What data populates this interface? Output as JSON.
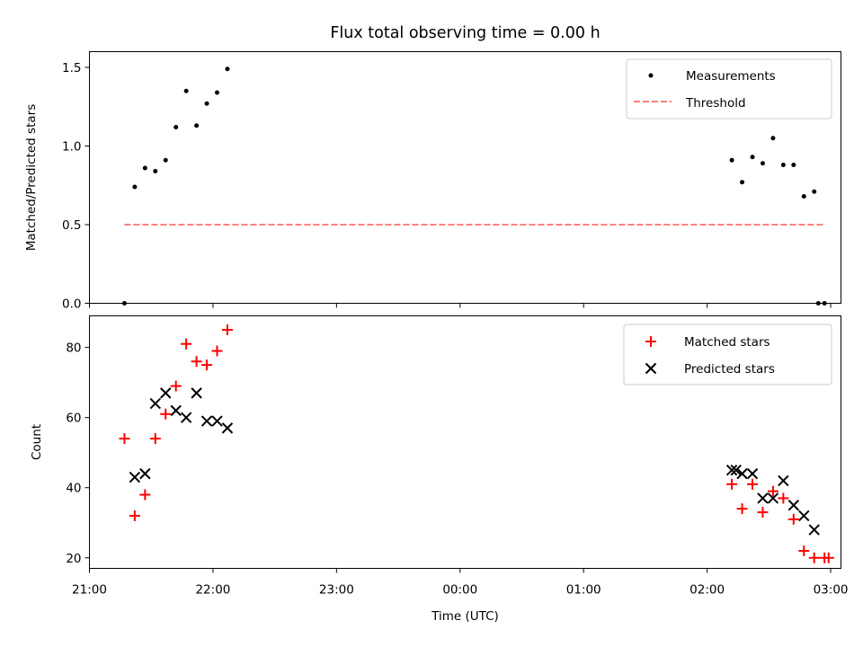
{
  "chart_data": [
    {
      "type": "scatter",
      "title": "Flux total observing time = 0.00 h",
      "xlabel": "",
      "ylabel": "Matched/Predicted stars",
      "xlim": [
        "21:00",
        "03:05"
      ],
      "ylim": [
        0,
        1.6
      ],
      "yticks": [
        "0.0",
        "0.5",
        "1.0",
        "1.5"
      ],
      "legend_position": "top-right",
      "series": [
        {
          "name": "Measurements",
          "marker": "dot",
          "color": "#000000",
          "x": [
            "21:17",
            "21:22",
            "21:27",
            "21:32",
            "21:37",
            "21:42",
            "21:47",
            "21:52",
            "21:57",
            "22:02",
            "22:07",
            "02:12",
            "02:17",
            "02:22",
            "02:27",
            "02:32",
            "02:37",
            "02:42",
            "02:47",
            "02:52",
            "02:57"
          ],
          "y": [
            0.0,
            0.74,
            0.86,
            0.84,
            0.91,
            1.12,
            1.35,
            1.13,
            1.27,
            1.34,
            1.49,
            0.91,
            0.77,
            0.93,
            0.89,
            1.05,
            0.88,
            0.88,
            0.68,
            0.71,
            0.0
          ]
        },
        {
          "name": "Threshold",
          "marker": "dashed-line",
          "color": "#ff7f7f",
          "x": [
            "21:17",
            "02:57"
          ],
          "y": [
            0.5,
            0.5
          ]
        }
      ],
      "extra_points": [
        {
          "x": "02:54",
          "y": 0.0
        }
      ]
    },
    {
      "type": "scatter",
      "title": "",
      "xlabel": "Time (UTC)",
      "ylabel": "Count",
      "xlim": [
        "21:00",
        "03:05"
      ],
      "ylim": [
        17,
        89
      ],
      "yticks": [
        "20",
        "40",
        "60",
        "80"
      ],
      "xticks": [
        "21:00",
        "22:00",
        "23:00",
        "00:00",
        "01:00",
        "02:00",
        "03:00"
      ],
      "legend_position": "top-right",
      "series": [
        {
          "name": "Matched stars",
          "marker": "plus",
          "color": "#ff0000",
          "x": [
            "21:17",
            "21:22",
            "21:27",
            "21:32",
            "21:37",
            "21:42",
            "21:47",
            "21:52",
            "21:57",
            "22:02",
            "22:07",
            "02:12",
            "02:17",
            "02:22",
            "02:27",
            "02:32",
            "02:37",
            "02:42",
            "02:47",
            "02:52",
            "02:57",
            "02:59"
          ],
          "y": [
            54,
            32,
            38,
            54,
            61,
            69,
            81,
            76,
            75,
            79,
            85,
            41,
            34,
            41,
            33,
            39,
            37,
            31,
            22,
            20,
            20,
            20
          ]
        },
        {
          "name": "Predicted stars",
          "marker": "x",
          "color": "#000000",
          "x": [
            "21:22",
            "21:27",
            "21:32",
            "21:37",
            "21:42",
            "21:47",
            "21:52",
            "21:57",
            "22:02",
            "22:07",
            "02:12",
            "02:14",
            "02:17",
            "02:22",
            "02:27",
            "02:32",
            "02:37",
            "02:42",
            "02:47",
            "02:52"
          ],
          "y": [
            43,
            44,
            64,
            67,
            62,
            60,
            67,
            59,
            59,
            57,
            45,
            45,
            44,
            44,
            37,
            37,
            42,
            35,
            32,
            28
          ]
        }
      ]
    }
  ]
}
